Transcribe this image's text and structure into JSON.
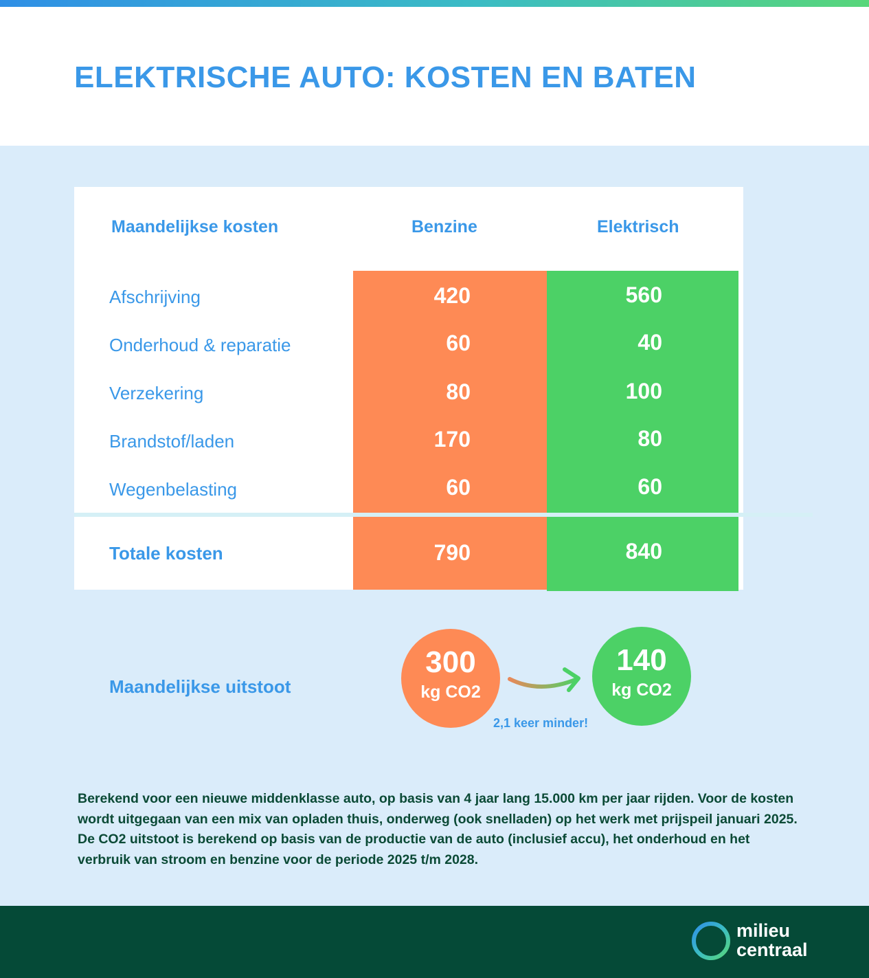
{
  "title": "ELEKTRISCHE AUTO: KOSTEN EN BATEN",
  "table": {
    "headers": [
      "Maandelijkse kosten",
      "Benzine",
      "Elektrisch"
    ],
    "rows": [
      {
        "label": "Afschrijving",
        "benzine": "420",
        "elektrisch": "560"
      },
      {
        "label": "Onderhoud & reparatie",
        "benzine": "60",
        "elektrisch": "40"
      },
      {
        "label": "Verzekering",
        "benzine": "80",
        "elektrisch": "100"
      },
      {
        "label": "Brandstof/laden",
        "benzine": "170",
        "elektrisch": "80"
      },
      {
        "label": "Wegenbelasting",
        "benzine": "60",
        "elektrisch": "60"
      }
    ],
    "total": {
      "label": "Totale kosten",
      "benzine": "790",
      "elektrisch": "840"
    }
  },
  "emissions": {
    "label": "Maandelijkse uitstoot",
    "benzine": {
      "value": "300",
      "unit": "kg CO2"
    },
    "elektrisch": {
      "value": "140",
      "unit": "kg CO2"
    },
    "factor": "2,1 keer minder!"
  },
  "footnote": "Berekend voor een nieuwe middenklasse auto, op basis van 4 jaar lang 15.000 km per jaar rijden. Voor de kosten wordt uitgegaan van een mix van opladen thuis, onderweg (ook snelladen) op het werk met prijspeil januari 2025. De CO2 uitstoot is berekend op basis van de productie van de auto (inclusief accu), het onderhoud en het verbruik van stroom en benzine voor de periode 2025 t/m 2028.",
  "logo": {
    "line1": "milieu",
    "line2": "centraal"
  },
  "colors": {
    "accent": "#3a98e8",
    "benzine": "#fe8a55",
    "elektrisch": "#4cd166",
    "footer": "#054a37",
    "panel": "#daecfa"
  }
}
